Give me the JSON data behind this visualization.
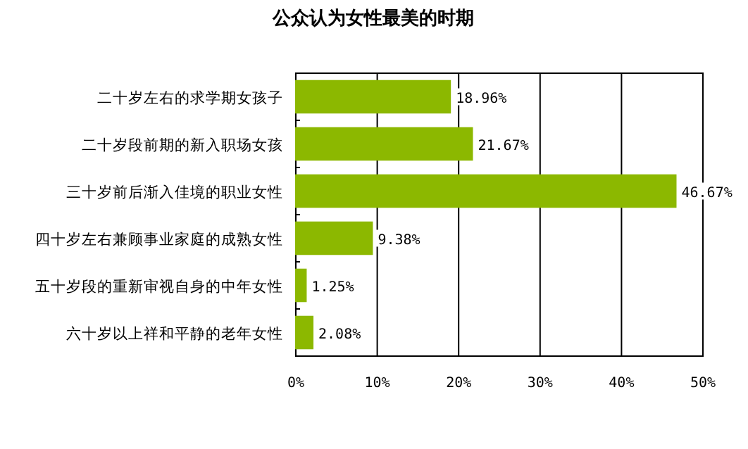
{
  "chart_data": {
    "type": "bar",
    "orientation": "horizontal",
    "title": "公众认为女性最美的时期",
    "categories": [
      "二十岁左右的求学期女孩子",
      "二十岁段前期的新入职场女孩",
      "三十岁前后渐入佳境的职业女性",
      "四十岁左右兼顾事业家庭的成熟女性",
      "五十岁段的重新审视自身的中年女性",
      "六十岁以上祥和平静的老年女性"
    ],
    "values": [
      18.96,
      21.67,
      46.67,
      9.38,
      1.25,
      2.08
    ],
    "value_labels": [
      "18.96%",
      "21.67%",
      "46.67%",
      "9.38%",
      "1.25%",
      "2.08%"
    ],
    "color": "#8cb800",
    "xlim": [
      0,
      50
    ],
    "xticks": [
      {
        "value": 0,
        "label": "0%"
      },
      {
        "value": 10,
        "label": "10%"
      },
      {
        "value": 20,
        "label": "20%"
      },
      {
        "value": 30,
        "label": "30%"
      },
      {
        "value": 40,
        "label": "40%"
      },
      {
        "value": 50,
        "label": "50%"
      }
    ],
    "grid": "x"
  }
}
